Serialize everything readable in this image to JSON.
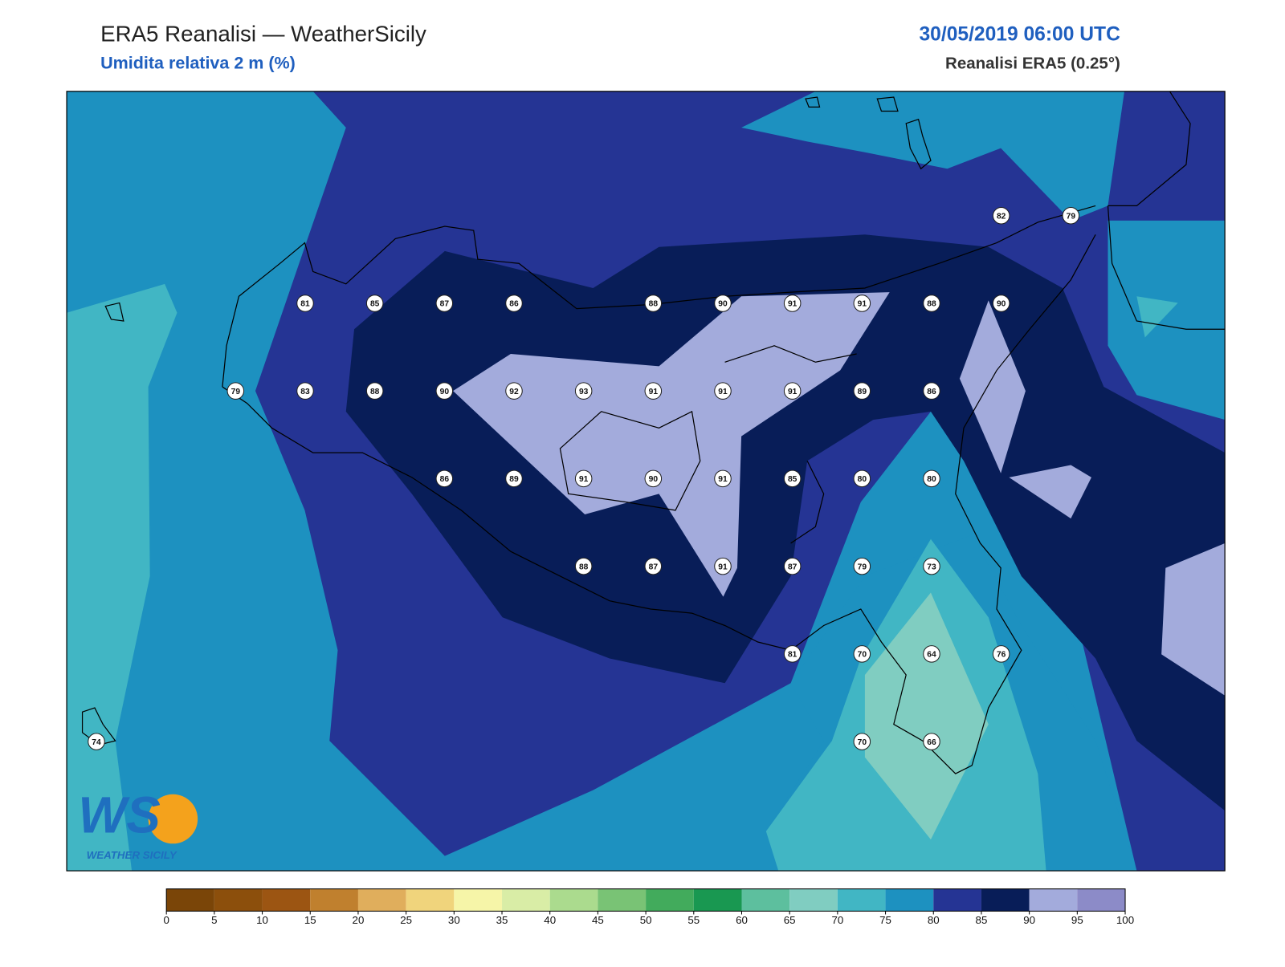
{
  "header": {
    "title": "ERA5 Reanalisi — WeatherSicily",
    "subtitle": "Umidita relativa 2 m (%)",
    "datetime": "30/05/2019 06:00 UTC",
    "source": "Reanalisi ERA5 (0.25°)"
  },
  "stations": {
    "rows": [
      [
        null,
        null,
        null,
        null,
        null,
        null,
        null,
        null,
        null,
        null,
        null,
        null,
        null,
        82,
        79
      ],
      [
        null,
        null,
        null,
        81,
        85,
        87,
        86,
        null,
        88,
        90,
        91,
        91,
        88,
        90,
        null
      ],
      [
        null,
        null,
        79,
        83,
        88,
        90,
        92,
        93,
        91,
        91,
        91,
        89,
        86,
        null,
        null
      ],
      [
        null,
        null,
        null,
        null,
        null,
        86,
        89,
        91,
        90,
        91,
        85,
        80,
        80,
        null,
        null
      ],
      [
        null,
        null,
        null,
        null,
        null,
        null,
        null,
        88,
        87,
        91,
        87,
        79,
        73,
        null,
        null
      ],
      [
        null,
        null,
        null,
        null,
        null,
        null,
        null,
        null,
        null,
        null,
        81,
        70,
        64,
        76,
        null
      ],
      [
        74,
        null,
        null,
        null,
        null,
        null,
        null,
        null,
        null,
        null,
        null,
        70,
        66,
        null,
        null
      ]
    ]
  },
  "colorbar": {
    "ticks": [
      0,
      5,
      10,
      15,
      20,
      25,
      30,
      35,
      40,
      45,
      50,
      55,
      60,
      65,
      70,
      75,
      80,
      85,
      90,
      95,
      100
    ],
    "colors": [
      "#7a4508",
      "#8c4f0c",
      "#9c5512",
      "#c0802e",
      "#e0ae5c",
      "#f0d47c",
      "#f6f5a8",
      "#d9eda6",
      "#abdb8e",
      "#79c375",
      "#42ab5c",
      "#199851",
      "#5dbf9e",
      "#80cdc1",
      "#41b6c4",
      "#1d91c0",
      "#253494",
      "#081d58",
      "#a3abdc",
      "#8c8bc8"
    ]
  },
  "logo": {
    "mark": "WS",
    "name": "WEATHER SICILY"
  }
}
